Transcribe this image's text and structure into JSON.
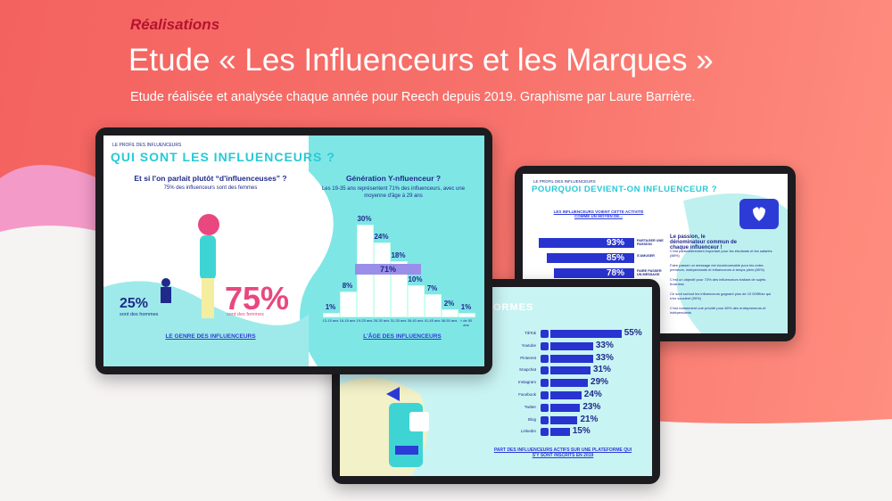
{
  "header": {
    "kicker": "Réalisations",
    "title": "Etude « Les Influenceurs et les Marques »",
    "subtitle": "Etude réalisée et analysée chaque année pour Reech depuis 2019. Graphisme par Laure Barrière."
  },
  "tablet_1": {
    "section": "LE PROFIL DES INFLUENCEURS",
    "title": "QUI SONT LES INFLUENCEURS ?",
    "gender": {
      "heading": "Et si l'on parlait plutôt “d'influenceuses” ?",
      "subheading": "75% des influenceurs sont des femmes",
      "men_value_label": "25%",
      "men_label": "sont des hommes",
      "women_value_label": "75%",
      "women_label": "sont des femmes",
      "caption": "LE GENRE DES INFLUENCEURS"
    },
    "age": {
      "heading": "Génération Y-nfluenceur ?",
      "subheading": "Les 19-35 ans représentent 71% des influenceurs, avec une moyenne d'âge à 29 ans",
      "categories": [
        "13-15 ans",
        "16-18 ans",
        "19-25 ans",
        "26-30 ans",
        "31-35 ans",
        "36-40 ans",
        "41-45 ans",
        "46-50 ans",
        "> de 50 ans"
      ],
      "values": [
        1,
        8,
        30,
        24,
        18,
        10,
        7,
        2,
        1
      ],
      "value_labels": [
        "1%",
        "8%",
        "30%",
        "24%",
        "18%",
        "10%",
        "7%",
        "2%",
        "1%"
      ],
      "highlight_label": "71%",
      "caption": "L'ÂGE DES INFLUENCEURS"
    }
  },
  "tablet_2": {
    "section": "LE PROFIL DES INFLUENCEURS",
    "title": "POURQUOI DEVIENT-ON INFLUENCEUR ?",
    "question": "LES INFLUENCEURS VOIENT CETTE ACTIVITÉ COMME UN MOYEN DE...",
    "reasons": [
      "PARTAGER UNE PASSION",
      "S'AMUSER",
      "FAIRE PASSER UN MESSAGE"
    ],
    "values": [
      93,
      85,
      78
    ],
    "value_labels": [
      "93%",
      "85%",
      "78%"
    ],
    "notes": [
      "Le passion, le dénominateur commun de chaque influenceur !",
      "C'est particulièrement important pour les étudiants et les salariés (88%)",
      "Faire passer un message est incontournable pour les entre-preneurs, indépendants et influenceurs à temps plein (80%)",
      "C'est un objectif pour 73% des influenceurs traitant de sujets business",
      "Ce sont surtout les influenceurs gagnant plus de 10 000€/an qui s'en soucient (90%)",
      "C'est notamment une priorité pour 60% des entrepreneurs et indépendants"
    ]
  },
  "tablet_3": {
    "title": "ORMES",
    "platforms": [
      "TikTok",
      "Youtube",
      "Pinterest",
      "Snapchat",
      "Instagram",
      "Facebook",
      "Twitter",
      "Blog",
      "LinkedIn"
    ],
    "values": [
      55,
      33,
      33,
      31,
      29,
      24,
      23,
      21,
      15
    ],
    "value_labels": [
      "55%",
      "33%",
      "33%",
      "31%",
      "29%",
      "24%",
      "23%",
      "21%",
      "15%"
    ],
    "caption": "PART DES INFLUENCEURS ACTIFS SUR UNE PLATEFORME QUI S'Y SONT INSCRITS EN 2019"
  }
}
